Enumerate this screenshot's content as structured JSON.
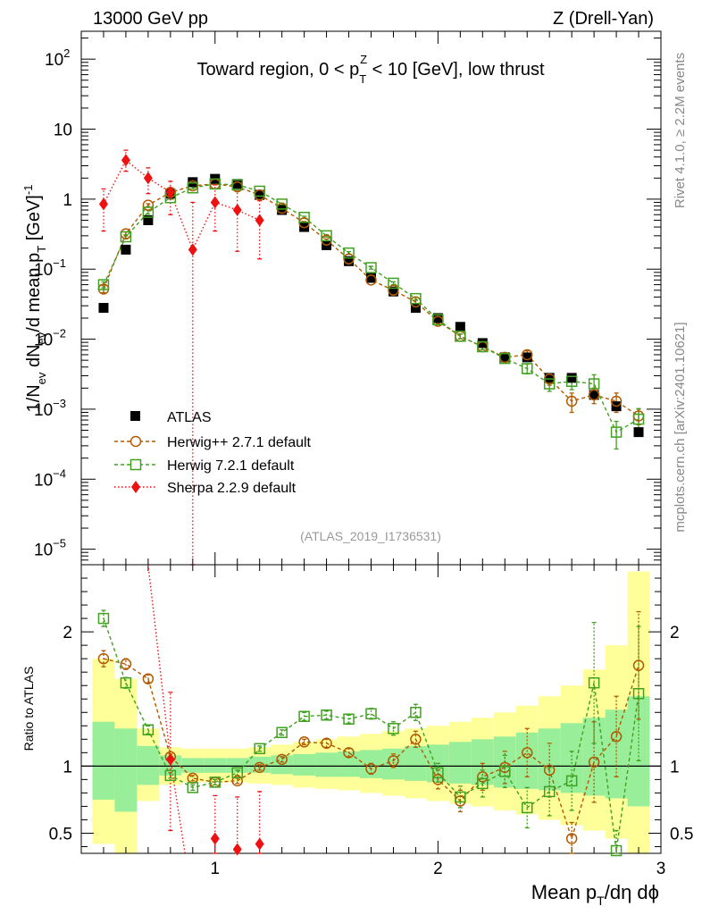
{
  "header": {
    "left": "13000 GeV pp",
    "right": "Z (Drell-Yan)"
  },
  "side": {
    "top": "Rivet 4.1.0, ≥ 2.2M events",
    "bottom": "mcplots.cern.ch [arXiv:2401.10621]"
  },
  "analysis_id": "(ATLAS_2019_I1736531)",
  "colors": {
    "atlas": "#000000",
    "herwigpp": "#b05a00",
    "herwig7": "#40a020",
    "sherpa": "#ee1111",
    "band_inner": "#99ee99",
    "band_outer": "#ffff99"
  },
  "chart_data": [
    {
      "type": "scatter",
      "yscale": "log",
      "title": "Toward region, 0 < p_T^Z < 10 [GeV], low thrust",
      "title_parts": {
        "lead": "Toward region, 0 < p",
        "sub": "T",
        "sup": "Z",
        "tail": " < 10 [GeV], low thrust"
      },
      "ylabel": "1/N_ev dN_ev/d mean p_T [GeV]^-1",
      "ylabel_parts": {
        "a": "1/N",
        "b": "ev",
        "c": " dN",
        "d": "ev",
        "e": "/d mean p",
        "f": "T",
        "g": " [GeV]",
        "h": "-1"
      },
      "xlim": [
        0.4,
        3.0
      ],
      "ylim": [
        6e-06,
        250
      ],
      "y_ticks": [
        {
          "value": 1e-05,
          "base": "10",
          "exp": "−5"
        },
        {
          "value": 0.0001,
          "base": "10",
          "exp": "−4"
        },
        {
          "value": 0.001,
          "base": "10",
          "exp": "−3"
        },
        {
          "value": 0.01,
          "base": "10",
          "exp": "−2"
        },
        {
          "value": 0.1,
          "base": "10",
          "exp": "−1"
        },
        {
          "value": 1,
          "base": "1",
          "exp": ""
        },
        {
          "value": 10,
          "base": "10",
          "exp": ""
        },
        {
          "value": 100,
          "base": "10",
          "exp": "2"
        }
      ],
      "legend_position": "lower-left",
      "series": [
        {
          "name": "ATLAS",
          "marker": "square-filled",
          "x": [
            0.5,
            0.6,
            0.7,
            0.8,
            0.9,
            1.0,
            1.1,
            1.2,
            1.3,
            1.4,
            1.5,
            1.6,
            1.7,
            1.8,
            1.9,
            2.0,
            2.1,
            2.2,
            2.3,
            2.4,
            2.5,
            2.6,
            2.7,
            2.8,
            2.9
          ],
          "y": [
            0.028,
            0.19,
            0.5,
            1.2,
            1.75,
            1.95,
            1.65,
            1.15,
            0.7,
            0.4,
            0.22,
            0.13,
            0.075,
            0.048,
            0.028,
            0.02,
            0.015,
            0.0088,
            0.0055,
            0.0055,
            0.0028,
            0.0028,
            0.0016,
            0.0011,
            0.00047
          ]
        },
        {
          "name": "Herwig++ 2.7.1 default",
          "marker": "circle-open",
          "x": [
            0.5,
            0.6,
            0.7,
            0.8,
            0.9,
            1.0,
            1.1,
            1.2,
            1.3,
            1.4,
            1.5,
            1.6,
            1.7,
            1.8,
            1.9,
            2.0,
            2.1,
            2.2,
            2.3,
            2.4,
            2.5,
            2.6,
            2.7,
            2.8,
            2.9
          ],
          "y": [
            0.052,
            0.32,
            0.82,
            1.25,
            1.55,
            1.65,
            1.5,
            1.15,
            0.74,
            0.46,
            0.26,
            0.14,
            0.07,
            0.05,
            0.034,
            0.018,
            0.011,
            0.0078,
            0.0055,
            0.006,
            0.0027,
            0.0013,
            0.0016,
            0.0013,
            0.0008
          ],
          "err": [
            0.006,
            0.02,
            0.04,
            0.05,
            0.05,
            0.05,
            0.05,
            0.04,
            0.03,
            0.02,
            0.01,
            0.006,
            0.004,
            0.003,
            0.002,
            0.0012,
            0.0008,
            0.0007,
            0.0006,
            0.0008,
            0.0005,
            0.0004,
            0.0004,
            0.0004,
            0.0002
          ]
        },
        {
          "name": "Herwig 7.2.1 default",
          "marker": "square-open",
          "x": [
            0.5,
            0.6,
            0.7,
            0.8,
            0.9,
            1.0,
            1.1,
            1.2,
            1.3,
            1.4,
            1.5,
            1.6,
            1.7,
            1.8,
            1.9,
            2.0,
            2.1,
            2.2,
            2.3,
            2.4,
            2.5,
            2.6,
            2.7,
            2.8,
            2.9
          ],
          "y": [
            0.06,
            0.29,
            0.65,
            1.05,
            1.45,
            1.65,
            1.6,
            1.3,
            0.85,
            0.55,
            0.3,
            0.17,
            0.105,
            0.063,
            0.038,
            0.019,
            0.011,
            0.0078,
            0.0053,
            0.0038,
            0.0023,
            0.0025,
            0.0023,
            0.00047,
            0.00072
          ],
          "err": [
            0.006,
            0.02,
            0.04,
            0.05,
            0.05,
            0.05,
            0.05,
            0.04,
            0.03,
            0.02,
            0.012,
            0.008,
            0.005,
            0.003,
            0.002,
            0.0013,
            0.0009,
            0.0007,
            0.0006,
            0.0006,
            0.0005,
            0.0006,
            0.0008,
            0.0002,
            0.0003
          ]
        },
        {
          "name": "Sherpa 2.2.9 default",
          "marker": "diamond-filled",
          "x": [
            0.5,
            0.6,
            0.7,
            0.8,
            0.9,
            1.0,
            1.1,
            1.2
          ],
          "y": [
            0.85,
            3.6,
            2.0,
            1.25,
            0.19,
            0.9,
            0.7,
            0.5
          ],
          "ylo": [
            0.35,
            2.5,
            1.2,
            0.6,
            1e-06,
            0.35,
            0.18,
            0.14
          ],
          "yhi": [
            1.4,
            5.0,
            2.8,
            1.8,
            0.9,
            1.6,
            1.3,
            0.95
          ]
        }
      ]
    },
    {
      "type": "scatter",
      "xlabel": "Mean p_T/dη dϕ",
      "xlabel_parts": {
        "lead": "Mean p",
        "sub": "T",
        "tail": "/dη dϕ"
      },
      "ylabel": "Ratio to ATLAS",
      "xlim": [
        0.4,
        3.0
      ],
      "ylim": [
        0.35,
        2.5
      ],
      "x_ticks": [
        {
          "value": 1,
          "label": "1"
        },
        {
          "value": 2,
          "label": "2"
        },
        {
          "value": 3,
          "label": "3"
        }
      ],
      "y_ticks": [
        {
          "value": 0.5,
          "label": "0.5"
        },
        {
          "value": 1,
          "label": "1"
        },
        {
          "value": 2,
          "label": "2"
        }
      ],
      "reference_line": 1,
      "bands": {
        "edges": [
          0.45,
          0.55,
          0.65,
          0.75,
          0.85,
          0.95,
          1.05,
          1.15,
          1.25,
          1.35,
          1.45,
          1.55,
          1.65,
          1.75,
          1.85,
          1.95,
          2.05,
          2.15,
          2.25,
          2.35,
          2.45,
          2.55,
          2.65,
          2.75,
          2.85,
          2.95
        ],
        "inner_lo": [
          0.75,
          0.66,
          0.86,
          0.93,
          0.95,
          0.95,
          0.95,
          0.95,
          0.94,
          0.93,
          0.92,
          0.92,
          0.91,
          0.9,
          0.89,
          0.88,
          0.87,
          0.86,
          0.84,
          0.83,
          0.82,
          0.8,
          0.78,
          0.76,
          0.7
        ],
        "inner_hi": [
          1.33,
          1.28,
          1.15,
          1.08,
          1.06,
          1.06,
          1.06,
          1.07,
          1.08,
          1.09,
          1.1,
          1.11,
          1.12,
          1.13,
          1.15,
          1.16,
          1.18,
          1.2,
          1.22,
          1.25,
          1.28,
          1.32,
          1.36,
          1.42,
          1.52
        ],
        "outer_lo": [
          0.42,
          0.35,
          0.74,
          0.86,
          0.88,
          0.88,
          0.88,
          0.87,
          0.86,
          0.84,
          0.83,
          0.82,
          0.8,
          0.78,
          0.76,
          0.74,
          0.72,
          0.7,
          0.67,
          0.64,
          0.6,
          0.56,
          0.52,
          0.46,
          0.35
        ],
        "outer_hi": [
          1.8,
          1.65,
          1.28,
          1.14,
          1.13,
          1.13,
          1.13,
          1.14,
          1.16,
          1.18,
          1.2,
          1.22,
          1.24,
          1.26,
          1.28,
          1.3,
          1.33,
          1.36,
          1.4,
          1.45,
          1.52,
          1.6,
          1.72,
          1.9,
          2.45
        ]
      },
      "series": [
        {
          "name": "Herwig++ 2.7.1 default",
          "marker": "circle-open",
          "x": [
            0.5,
            0.6,
            0.7,
            0.8,
            0.9,
            1.0,
            1.1,
            1.2,
            1.3,
            1.4,
            1.5,
            1.6,
            1.7,
            1.8,
            1.9,
            2.0,
            2.1,
            2.2,
            2.3,
            2.4,
            2.5,
            2.6,
            2.7,
            2.8,
            2.9
          ],
          "y": [
            1.8,
            1.76,
            1.65,
            1.07,
            0.91,
            0.88,
            0.89,
            0.99,
            1.05,
            1.18,
            1.17,
            1.1,
            0.98,
            1.04,
            1.2,
            0.9,
            0.74,
            0.92,
            0.99,
            1.1,
            0.97,
            0.46,
            1.03,
            1.22,
            1.75
          ],
          "err": [
            0.06,
            0.04,
            0.03,
            0.02,
            0.02,
            0.02,
            0.02,
            0.02,
            0.02,
            0.02,
            0.03,
            0.03,
            0.04,
            0.05,
            0.06,
            0.07,
            0.08,
            0.1,
            0.12,
            0.18,
            0.2,
            0.12,
            0.3,
            0.3,
            0.4
          ]
        },
        {
          "name": "Herwig 7.2.1 default",
          "marker": "square-open",
          "x": [
            0.5,
            0.6,
            0.7,
            0.8,
            0.9,
            1.0,
            1.1,
            1.2,
            1.3,
            1.4,
            1.5,
            1.6,
            1.7,
            1.8,
            1.9,
            2.0,
            2.1,
            2.2,
            2.3,
            2.4,
            2.5,
            2.6,
            2.7,
            2.8,
            2.9
          ],
          "y": [
            2.1,
            1.62,
            1.27,
            0.93,
            0.84,
            0.88,
            0.95,
            1.13,
            1.25,
            1.37,
            1.38,
            1.35,
            1.39,
            1.28,
            1.4,
            0.95,
            0.77,
            0.87,
            0.96,
            0.69,
            0.81,
            0.89,
            1.62,
            0.37,
            1.54
          ],
          "err": [
            0.06,
            0.04,
            0.03,
            0.02,
            0.02,
            0.02,
            0.02,
            0.02,
            0.02,
            0.03,
            0.03,
            0.03,
            0.04,
            0.05,
            0.06,
            0.07,
            0.08,
            0.1,
            0.12,
            0.15,
            0.18,
            0.22,
            0.45,
            0.15,
            0.5
          ]
        },
        {
          "name": "Sherpa 2.2.9 default",
          "marker": "diamond-filled",
          "x": [
            0.8,
            1.0,
            1.1,
            1.2
          ],
          "y": [
            1.05,
            0.46,
            0.38,
            0.42
          ],
          "ylo": [
            0.52,
            0.18,
            0.1,
            0.12
          ],
          "yhi": [
            1.55,
            0.78,
            0.77,
            0.81
          ]
        }
      ]
    }
  ]
}
